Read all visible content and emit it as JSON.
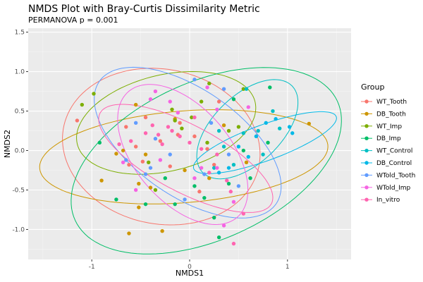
{
  "chart_data": {
    "type": "scatter",
    "title": "NMDS Plot with Bray-Curtis Dissimilarity Metric",
    "subtitle": "PERMANOVA p = 0.001",
    "xlabel": "NMDS1",
    "ylabel": "NMDS2",
    "xlim": [
      -1.65,
      1.65
    ],
    "ylim": [
      -1.38,
      1.55
    ],
    "x_ticks": [
      -1,
      0,
      1
    ],
    "y_ticks": [
      -1.0,
      -0.5,
      0.0,
      0.5,
      1.0,
      1.5
    ],
    "x_tick_labels": [
      "-1",
      "0",
      "1"
    ],
    "y_tick_labels": [
      "-1.0",
      "-0.5",
      "0.0",
      "0.5",
      "1.0",
      "1.5"
    ],
    "grid": true,
    "legend_position": "right",
    "legend_title": "Group",
    "series": [
      {
        "name": "WT_Tooth",
        "color": "#F8766D",
        "points": [
          [
            -1.15,
            0.38
          ],
          [
            -0.65,
            0.3
          ],
          [
            -0.55,
            0.05
          ],
          [
            -0.48,
            -0.14
          ],
          [
            -0.3,
            0.12
          ],
          [
            -0.62,
            -0.18
          ],
          [
            -0.12,
            0.2
          ],
          [
            0.05,
            0.18
          ],
          [
            0.18,
            0.02
          ],
          [
            0.25,
            -0.18
          ],
          [
            -0.2,
            -0.2
          ],
          [
            0.1,
            -0.52
          ],
          [
            -0.45,
            0.42
          ],
          [
            0.3,
            0.62
          ],
          [
            -0.1,
            0.35
          ]
        ],
        "ellipse": {
          "cx": -0.29,
          "cy": 0.05,
          "rx": 1.05,
          "ry": 0.95,
          "angle": -40
        }
      },
      {
        "name": "DB_Tooth",
        "color": "#CD9600",
        "points": [
          [
            -0.52,
            -0.42
          ],
          [
            -0.4,
            -0.47
          ],
          [
            -0.62,
            -1.05
          ],
          [
            -0.28,
            -1.02
          ],
          [
            -0.75,
            -0.04
          ],
          [
            -0.9,
            -0.38
          ],
          [
            -0.55,
            0.58
          ],
          [
            -0.15,
            0.4
          ],
          [
            0.2,
            -0.35
          ],
          [
            0.35,
            0.32
          ],
          [
            -0.45,
            -0.05
          ],
          [
            -0.05,
            -0.25
          ],
          [
            0.58,
            -0.15
          ],
          [
            1.22,
            0.34
          ],
          [
            -0.52,
            -0.72
          ],
          [
            -0.68,
            0.0
          ]
        ],
        "ellipse": {
          "cx": -0.06,
          "cy": -0.08,
          "rx": 1.48,
          "ry": 0.58,
          "angle": 6
        }
      },
      {
        "name": "WT_Imp",
        "color": "#7CAE00",
        "points": [
          [
            -1.1,
            0.58
          ],
          [
            -0.98,
            0.72
          ],
          [
            -0.18,
            0.52
          ],
          [
            0.02,
            0.42
          ],
          [
            0.2,
            0.85
          ],
          [
            0.4,
            0.25
          ],
          [
            0.18,
            0.1
          ],
          [
            -0.42,
            -0.15
          ],
          [
            0.5,
            0.3
          ],
          [
            -0.35,
            -0.5
          ],
          [
            -0.15,
            0.38
          ],
          [
            0.55,
            0.78
          ],
          [
            -0.08,
            0.28
          ],
          [
            0.12,
            0.62
          ]
        ],
        "ellipse": {
          "cx": -0.24,
          "cy": 0.35,
          "rx": 0.95,
          "ry": 0.6,
          "angle": 20
        }
      },
      {
        "name": "DB_Imp",
        "color": "#00BE67",
        "points": [
          [
            -0.92,
            0.1
          ],
          [
            -0.75,
            -0.62
          ],
          [
            -0.45,
            -0.68
          ],
          [
            -0.15,
            -0.68
          ],
          [
            0.55,
            0.0
          ],
          [
            0.8,
            0.1
          ],
          [
            0.4,
            -0.42
          ],
          [
            0.25,
            -0.85
          ],
          [
            0.3,
            -1.1
          ],
          [
            0.05,
            -0.45
          ],
          [
            0.45,
            0.65
          ],
          [
            0.82,
            0.8
          ],
          [
            0.62,
            -0.35
          ],
          [
            0.15,
            -0.6
          ],
          [
            -0.25,
            -0.35
          ]
        ],
        "ellipse": {
          "cx": 0.17,
          "cy": -0.13,
          "rx": 1.55,
          "ry": 0.95,
          "angle": 35
        }
      },
      {
        "name": "WT_Control",
        "color": "#00BFC4",
        "points": [
          [
            0.35,
            0.05
          ],
          [
            0.55,
            0.22
          ],
          [
            0.7,
            0.25
          ],
          [
            0.92,
            0.28
          ],
          [
            0.85,
            0.5
          ],
          [
            0.58,
            0.78
          ],
          [
            0.25,
            -0.22
          ],
          [
            0.75,
            -0.05
          ],
          [
            0.45,
            -0.18
          ],
          [
            0.3,
            0.25
          ]
        ],
        "ellipse": {
          "cx": 0.59,
          "cy": 0.27,
          "rx": 0.72,
          "ry": 0.38,
          "angle": 55
        }
      },
      {
        "name": "DB_Control",
        "color": "#00B8E7",
        "points": [
          [
            1.02,
            0.3
          ],
          [
            1.05,
            0.22
          ],
          [
            0.78,
            0.35
          ],
          [
            0.88,
            0.4
          ],
          [
            0.6,
            -0.08
          ],
          [
            0.4,
            -0.22
          ],
          [
            0.3,
            -0.28
          ],
          [
            0.68,
            0.18
          ],
          [
            0.5,
            0.05
          ]
        ],
        "ellipse": {
          "cx": 0.77,
          "cy": 0.1,
          "rx": 0.8,
          "ry": 0.22,
          "angle": 25
        }
      },
      {
        "name": "WTold_Tooth",
        "color": "#619CFF",
        "points": [
          [
            -0.45,
            -0.3
          ],
          [
            -0.4,
            -0.22
          ],
          [
            0.05,
            0.9
          ],
          [
            0.35,
            0.78
          ],
          [
            0.5,
            -0.45
          ],
          [
            -0.2,
            -0.05
          ],
          [
            0.15,
            -0.3
          ],
          [
            -0.05,
            -0.62
          ],
          [
            0.4,
            -0.05
          ],
          [
            -0.65,
            -0.12
          ],
          [
            0.22,
            0.35
          ],
          [
            -0.35,
            0.15
          ],
          [
            -0.55,
            0.35
          ]
        ],
        "ellipse": {
          "cx": -0.02,
          "cy": 0.1,
          "rx": 1.2,
          "ry": 0.62,
          "angle": -45
        }
      },
      {
        "name": "WTold_Imp",
        "color": "#F564E3",
        "points": [
          [
            -0.68,
            -0.15
          ],
          [
            -0.4,
            0.65
          ],
          [
            -0.35,
            0.75
          ],
          [
            0.18,
            0.8
          ],
          [
            0.6,
            0.55
          ],
          [
            0.28,
            -0.22
          ],
          [
            0.35,
            -0.95
          ],
          [
            0.45,
            -0.65
          ],
          [
            0.05,
            -0.35
          ],
          [
            -0.12,
            0.48
          ],
          [
            -0.55,
            -0.5
          ],
          [
            0.12,
            -0.22
          ],
          [
            -0.3,
            -0.12
          ],
          [
            0.28,
            0.52
          ],
          [
            -0.2,
            0.62
          ]
        ],
        "ellipse": {
          "cx": -0.07,
          "cy": -0.05,
          "rx": 0.98,
          "ry": 0.52,
          "angle": -60
        }
      },
      {
        "name": "In_vitro",
        "color": "#FF64B0",
        "points": [
          [
            -0.72,
            0.08
          ],
          [
            -0.6,
            0.12
          ],
          [
            -0.45,
            0.22
          ],
          [
            -0.38,
            0.32
          ],
          [
            -0.32,
            0.2
          ],
          [
            -0.22,
            0.3
          ],
          [
            -0.18,
            0.25
          ],
          [
            -0.1,
            0.18
          ],
          [
            0.0,
            0.1
          ],
          [
            0.05,
            0.42
          ],
          [
            0.2,
            -0.28
          ],
          [
            0.28,
            -0.05
          ],
          [
            0.38,
            -0.38
          ],
          [
            0.42,
            -0.52
          ],
          [
            0.45,
            -1.18
          ],
          [
            0.55,
            -0.8
          ],
          [
            -0.28,
            0.08
          ],
          [
            0.12,
            0.02
          ]
        ],
        "ellipse": {
          "cx": -0.04,
          "cy": -0.1,
          "rx": 1.05,
          "ry": 0.4,
          "angle": -35
        }
      }
    ]
  }
}
